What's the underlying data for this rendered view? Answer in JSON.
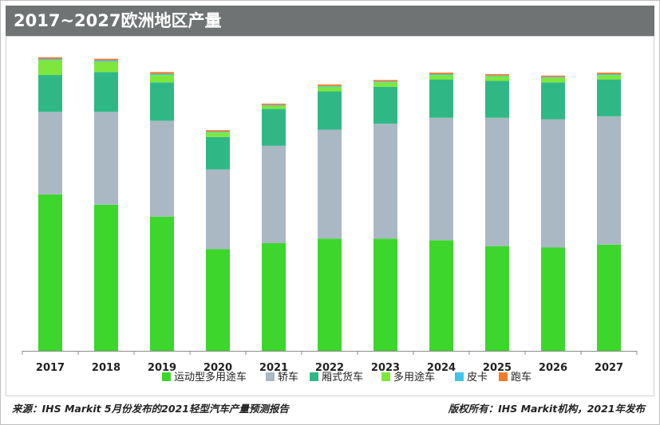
{
  "title": "2017~2027欧洲地区产量",
  "source": "来源：IHS Markit 5月份发布的2021轻型汽车产量预测报告",
  "copyright": "版权所有：IHS Markit机构，2021年发布",
  "chart_data": {
    "type": "bar",
    "stacked": true,
    "title": "2017~2027欧洲地区产量",
    "categories": [
      "2017",
      "2018",
      "2019",
      "2020",
      "2021",
      "2022",
      "2023",
      "2024",
      "2025",
      "2026",
      "2027"
    ],
    "ylim": [
      0,
      100
    ],
    "grid": false,
    "legend_position": "bottom",
    "series": [
      {
        "name": "运动型多用途车",
        "color": "#3cd62c",
        "values": [
          53,
          49.5,
          45.5,
          34.5,
          36.5,
          38,
          38,
          37.5,
          35.5,
          35,
          36
        ]
      },
      {
        "name": "轿车",
        "color": "#a9b8c3",
        "values": [
          28,
          31.5,
          32.5,
          27,
          33,
          37,
          39,
          41.5,
          43.5,
          43.5,
          43.5
        ]
      },
      {
        "name": "厢式货车",
        "color": "#2fb885",
        "values": [
          12.5,
          13.5,
          13,
          11,
          12.5,
          13,
          12.5,
          13,
          12.5,
          12.5,
          12.5
        ]
      },
      {
        "name": "多用途车",
        "color": "#7de83b",
        "values": [
          5,
          3.5,
          2.5,
          1.5,
          1,
          1.5,
          1.5,
          1.5,
          1.5,
          1.5,
          1.5
        ]
      },
      {
        "name": "皮卡",
        "color": "#3ec6e8",
        "values": [
          0.4,
          0.4,
          0.4,
          0.3,
          0.3,
          0.3,
          0.3,
          0.3,
          0.3,
          0.3,
          0.3
        ]
      },
      {
        "name": "跑车",
        "color": "#f07b2b",
        "values": [
          0.6,
          0.6,
          0.6,
          0.5,
          0.5,
          0.5,
          0.5,
          0.5,
          0.5,
          0.5,
          0.5
        ]
      }
    ]
  }
}
